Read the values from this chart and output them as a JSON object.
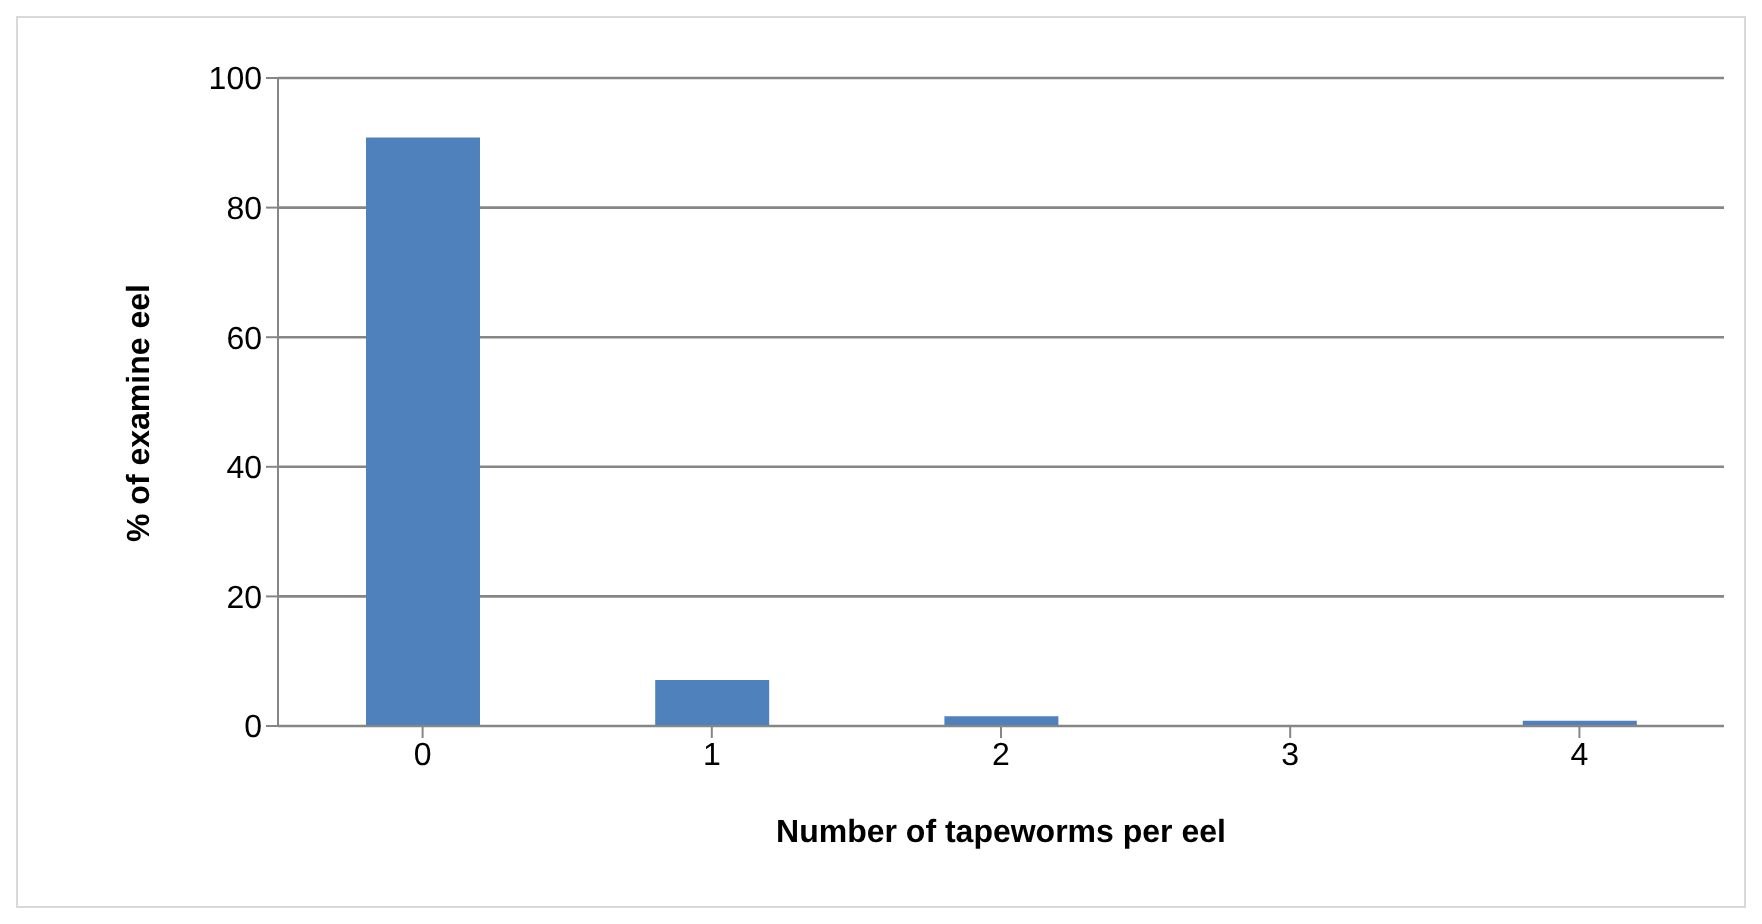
{
  "chart_data": {
    "type": "bar",
    "xlabel": "Number of tapeworms per eel",
    "ylabel": "% of examine eel",
    "categories": [
      "0",
      "1",
      "2",
      "3",
      "4"
    ],
    "values": [
      90.8,
      7.1,
      1.5,
      0,
      0.8
    ],
    "color": "#4f81bd",
    "ylim": [
      0,
      100
    ],
    "yticks": [
      0,
      20,
      40,
      60,
      80,
      100
    ],
    "grid": "y"
  }
}
